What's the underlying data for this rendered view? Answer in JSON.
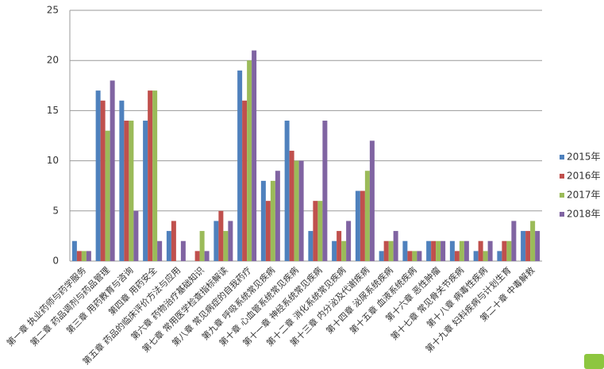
{
  "chart_data": {
    "type": "bar",
    "categories": [
      "第一章 执业药师与药学服务",
      "第二章 药品调剂与药品管理",
      "第三章 用药教育与咨询",
      "第四章 用药安全",
      "第五章 药品的临床评价方法与应用",
      "第六章 药物治疗基础知识",
      "第七章 常用医学检查指标解读",
      "第八章 常见病症的自我药疗",
      "第九章 呼吸系统常见疾病",
      "第十章 心血管系统常见疾病",
      "第十一章 神经系统常见疾病",
      "第十二章 消化系统常见疾病",
      "第十三章 内分泌及代谢疾病",
      "第十四章 泌尿系统疾病",
      "第十五章 血液系统疾病",
      "第十六章 恶性肿瘤",
      "第十七章 常见骨关节疾病",
      "第十八章 病毒性疾病",
      "第十九章 妇科疾病与计划生育",
      "第二十章 中毒解救"
    ],
    "series": [
      {
        "name": "2015年",
        "color": "#4f81bd",
        "values": [
          2,
          17,
          16,
          14,
          3,
          0,
          4,
          19,
          8,
          14,
          3,
          2,
          7,
          1,
          2,
          2,
          2,
          1,
          1,
          3
        ]
      },
      {
        "name": "2016年",
        "color": "#c0504d",
        "values": [
          1,
          16,
          14,
          17,
          4,
          1,
          5,
          16,
          6,
          11,
          6,
          3,
          7,
          2,
          1,
          2,
          1,
          2,
          2,
          3
        ]
      },
      {
        "name": "2017年",
        "color": "#9bbb59",
        "values": [
          1,
          13,
          14,
          17,
          0,
          3,
          3,
          20,
          8,
          10,
          6,
          2,
          9,
          2,
          1,
          2,
          2,
          1,
          2,
          4
        ]
      },
      {
        "name": "2018年",
        "color": "#8064a2",
        "values": [
          1,
          18,
          5,
          2,
          2,
          1,
          4,
          21,
          9,
          10,
          14,
          4,
          12,
          3,
          1,
          2,
          2,
          2,
          4,
          3
        ]
      }
    ],
    "ylim": [
      0,
      25
    ],
    "yticks": [
      0,
      5,
      10,
      15,
      20,
      25
    ],
    "grid": true,
    "legend": "right"
  }
}
